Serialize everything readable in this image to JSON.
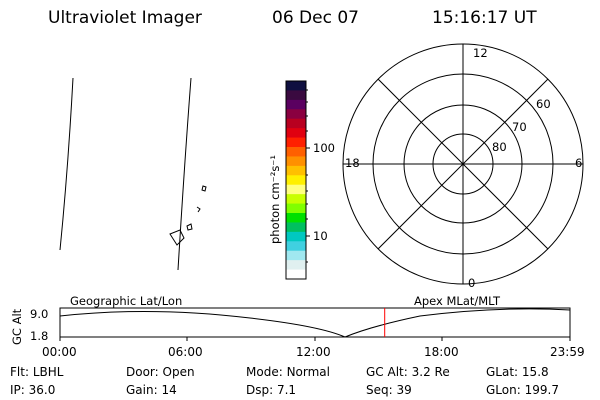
{
  "header": {
    "title": "Ultraviolet Imager",
    "date": "06 Dec 07",
    "time": "15:16:17 UT"
  },
  "colorbar": {
    "unit_label": "photon cm⁻²s⁻¹",
    "ticks": [
      "100",
      "10"
    ],
    "colors": [
      "#101040",
      "#3a0a40",
      "#5a0060",
      "#8a0040",
      "#b80020",
      "#e00010",
      "#ff2000",
      "#ff6000",
      "#ff9000",
      "#ffc000",
      "#fff000",
      "#ffff80",
      "#c8ff00",
      "#80ff00",
      "#00e000",
      "#00c060",
      "#00c8c0",
      "#40d0e0",
      "#a0e8f0",
      "#e0f0f0",
      "#ffffff"
    ]
  },
  "polar": {
    "mlt_labels": [
      "12",
      "18",
      "6",
      "0"
    ],
    "lat_labels": [
      "60",
      "70",
      "80"
    ]
  },
  "timeline": {
    "left_label": "Geographic Lat/Lon",
    "right_label": "Apex MLat/MLT",
    "axis_title": "GC Alt",
    "y_ticks": [
      "9.0",
      "1.8"
    ],
    "x_ticks": [
      "00:00",
      "06:00",
      "12:00",
      "18:00",
      "23:59"
    ],
    "marker_time_hours": 15.27,
    "marker_color": "#ff0000"
  },
  "info": {
    "row1": [
      {
        "label": "Flt:",
        "value": "LBHL"
      },
      {
        "label": "Door:",
        "value": "Open"
      },
      {
        "label": "Mode:",
        "value": "Normal"
      },
      {
        "label": "GC Alt:",
        "value": "3.2 Re"
      },
      {
        "label": "GLat:",
        "value": "15.8"
      }
    ],
    "row2": [
      {
        "label": "IP:",
        "value": "36.0"
      },
      {
        "label": "Gain:",
        "value": "14"
      },
      {
        "label": "Dsp:",
        "value": "7.1"
      },
      {
        "label": "Seq:",
        "value": "39"
      },
      {
        "label": "GLon:",
        "value": "199.7"
      }
    ]
  }
}
